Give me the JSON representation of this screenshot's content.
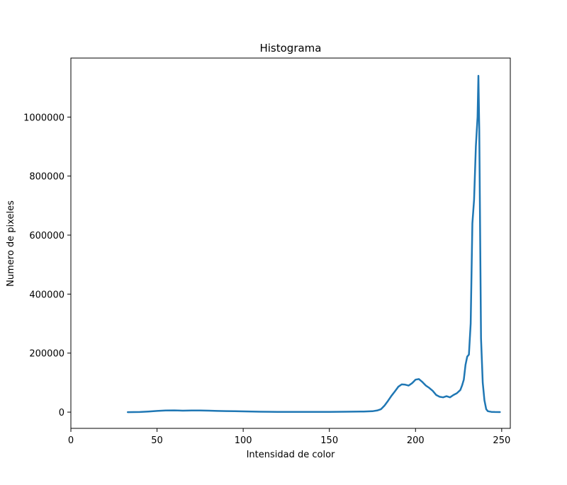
{
  "chart_data": {
    "type": "line",
    "title": "Histograma",
    "xlabel": "Intensidad de color",
    "ylabel": "Numero de pixeles",
    "xlim": [
      0,
      255
    ],
    "ylim": [
      -55000,
      1200000
    ],
    "xticks": [
      0,
      50,
      100,
      150,
      200,
      250
    ],
    "yticks": [
      0,
      200000,
      400000,
      600000,
      800000,
      1000000
    ],
    "grid": false,
    "legend": "none",
    "series": [
      {
        "color": "#1f77b4",
        "x": [
          33,
          40,
          45,
          50,
          55,
          60,
          65,
          70,
          75,
          80,
          85,
          90,
          95,
          100,
          110,
          120,
          130,
          140,
          150,
          160,
          170,
          175,
          178,
          180,
          182,
          184,
          186,
          188,
          190,
          192,
          194,
          196,
          198,
          200,
          202,
          204,
          206,
          208,
          210,
          212,
          214,
          216,
          218,
          220,
          222,
          224,
          226,
          227,
          228,
          229,
          230,
          231,
          232,
          233,
          234,
          235,
          236,
          236.5,
          237,
          238,
          239,
          240,
          241,
          242,
          244,
          246,
          249
        ],
        "y": [
          0,
          500,
          2000,
          4000,
          5500,
          6000,
          5000,
          5500,
          5500,
          5000,
          4000,
          3500,
          3000,
          2500,
          1500,
          1000,
          800,
          800,
          1000,
          1500,
          2000,
          3000,
          6000,
          10000,
          22000,
          38000,
          55000,
          70000,
          86000,
          94000,
          93000,
          90000,
          98000,
          110000,
          112000,
          102000,
          90000,
          82000,
          72000,
          58000,
          52000,
          50000,
          54000,
          50000,
          58000,
          64000,
          75000,
          90000,
          110000,
          160000,
          188000,
          195000,
          300000,
          640000,
          720000,
          900000,
          1000000,
          1140000,
          960000,
          250000,
          100000,
          40000,
          10000,
          3000,
          1000,
          500,
          300
        ]
      }
    ]
  }
}
